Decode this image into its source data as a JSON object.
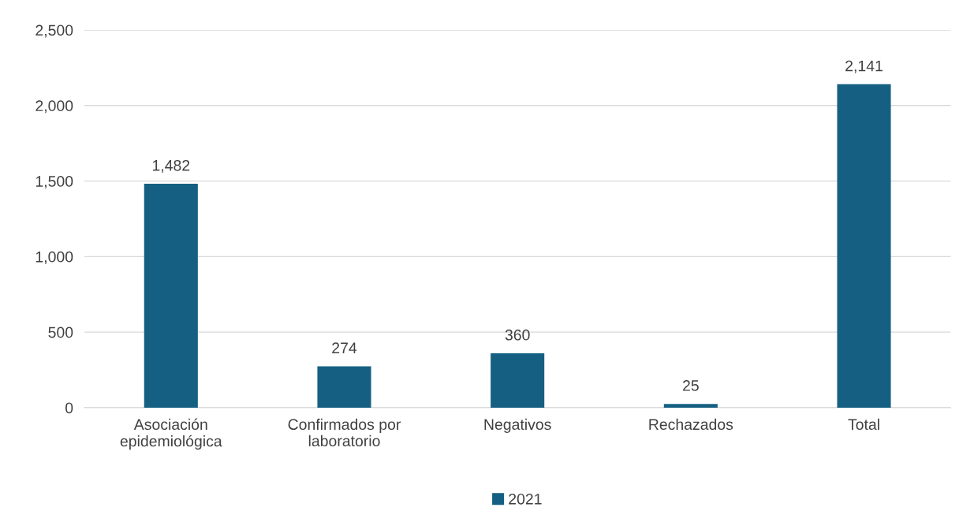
{
  "chart_data": {
    "type": "bar",
    "categories": [
      "Asociación\nepidemiológica",
      "Confirmados por\nlaboratorio",
      "Negativos",
      "Rechazados",
      "Total"
    ],
    "series": [
      {
        "name": "2021",
        "color": "#156082",
        "values": [
          1482,
          274,
          360,
          25,
          2141
        ]
      }
    ],
    "ylim": [
      0,
      2500
    ],
    "yticks": [
      {
        "value": 0,
        "label": "0"
      },
      {
        "value": 500,
        "label": "500"
      },
      {
        "value": 1000,
        "label": "1,000"
      },
      {
        "value": 1500,
        "label": "1,500"
      },
      {
        "value": 2000,
        "label": "2,000"
      },
      {
        "value": 2500,
        "label": "2,500"
      }
    ],
    "value_labels": [
      "1,482",
      "274",
      "360",
      "25",
      "2,141"
    ],
    "grid": "y",
    "legend": "bottom"
  }
}
